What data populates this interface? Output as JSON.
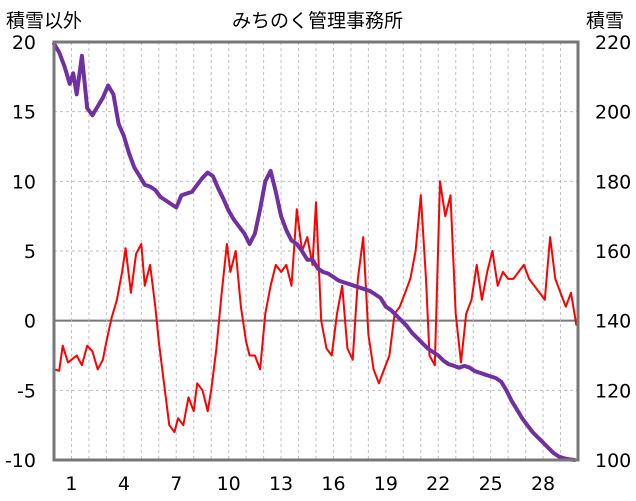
{
  "chart_data": {
    "type": "line",
    "title": "みちのく管理事務所",
    "left_axis_label": "積雪以外",
    "right_axis_label": "積雪",
    "y_left_range": [
      -10,
      20
    ],
    "y_right_range": [
      100,
      220
    ],
    "y_left_ticks": [
      "20",
      "15",
      "10",
      "5",
      "0",
      "-5",
      "-10"
    ],
    "y_right_ticks": [
      "220",
      "200",
      "180",
      "160",
      "140",
      "120",
      "100"
    ],
    "x_range": [
      0,
      30
    ],
    "x_ticks": [
      "1",
      "4",
      "7",
      "10",
      "13",
      "16",
      "19",
      "22",
      "25",
      "28"
    ],
    "x_tick_values": [
      1,
      4,
      7,
      10,
      13,
      16,
      19,
      22,
      25,
      28
    ],
    "grid": true,
    "zero_line": true,
    "series": [
      {
        "axis": "left",
        "color": "#ff0000",
        "x": [
          0,
          0.3,
          0.5,
          0.8,
          1.0,
          1.3,
          1.6,
          1.9,
          2.2,
          2.5,
          2.8,
          3.0,
          3.3,
          3.6,
          3.9,
          4.1,
          4.4,
          4.7,
          5.0,
          5.2,
          5.5,
          5.8,
          6.0,
          6.3,
          6.6,
          6.9,
          7.1,
          7.4,
          7.7,
          8.0,
          8.2,
          8.5,
          8.8,
          9.0,
          9.3,
          9.6,
          9.9,
          10.1,
          10.4,
          10.7,
          11.0,
          11.2,
          11.5,
          11.8,
          12.1,
          12.4,
          12.7,
          13.0,
          13.3,
          13.6,
          13.9,
          14.2,
          14.5,
          14.8,
          15.0,
          15.3,
          15.6,
          15.9,
          16.2,
          16.5,
          16.8,
          17.1,
          17.4,
          17.7,
          18.0,
          18.3,
          18.6,
          18.9,
          19.2,
          19.5,
          19.8,
          20.1,
          20.4,
          20.7,
          21.0,
          21.3,
          21.5,
          21.8,
          22.1,
          22.4,
          22.7,
          23.0,
          23.3,
          23.6,
          23.9,
          24.2,
          24.5,
          24.8,
          25.1,
          25.4,
          25.7,
          26.0,
          26.3,
          26.6,
          26.9,
          27.2,
          27.5,
          27.8,
          28.1,
          28.4,
          28.7,
          29.0,
          29.3,
          29.6,
          29.9
        ],
        "y": [
          -3.5,
          -3.6,
          -1.8,
          -3.0,
          -2.8,
          -2.5,
          -3.2,
          -1.8,
          -2.2,
          -3.5,
          -2.8,
          -1.5,
          0.2,
          1.5,
          3.5,
          5.2,
          2.0,
          4.8,
          5.5,
          2.5,
          4.0,
          1.0,
          -1.5,
          -4.5,
          -7.5,
          -8.0,
          -7.0,
          -7.5,
          -5.5,
          -6.5,
          -4.5,
          -5.0,
          -6.5,
          -5.0,
          -2.0,
          2.0,
          5.5,
          3.5,
          5.0,
          1.0,
          -1.5,
          -2.5,
          -2.5,
          -3.5,
          0.5,
          2.5,
          4.0,
          3.5,
          4.0,
          2.5,
          8.0,
          5.0,
          6.0,
          4.0,
          8.5,
          0.0,
          -2.0,
          -2.5,
          0.5,
          2.5,
          -2.0,
          -2.8,
          3.0,
          6.0,
          -1.0,
          -3.5,
          -4.5,
          -3.5,
          -2.5,
          0.5,
          1.0,
          2.0,
          3.0,
          5.0,
          9.0,
          3.0,
          -2.5,
          -3.2,
          10.0,
          7.5,
          9.0,
          0.5,
          -3.0,
          0.5,
          1.5,
          4.0,
          1.5,
          3.5,
          5.0,
          2.5,
          3.5,
          3.0,
          3.0,
          3.5,
          4.0,
          3.0,
          2.5,
          2.0,
          1.5,
          6.0,
          3.0,
          2.0,
          1.0,
          2.0,
          -0.3
        ]
      },
      {
        "axis": "right",
        "color": "#7030a0",
        "x": [
          0,
          0.3,
          0.6,
          0.9,
          1.1,
          1.3,
          1.6,
          1.9,
          2.2,
          2.5,
          2.8,
          3.1,
          3.4,
          3.7,
          4.0,
          4.3,
          4.6,
          4.9,
          5.2,
          5.5,
          5.8,
          6.1,
          6.4,
          6.7,
          7.0,
          7.3,
          7.6,
          7.9,
          8.2,
          8.5,
          8.8,
          9.1,
          9.4,
          9.7,
          10.0,
          10.3,
          10.6,
          10.9,
          11.2,
          11.5,
          11.8,
          12.1,
          12.4,
          12.7,
          13.0,
          13.3,
          13.6,
          13.9,
          14.2,
          14.5,
          14.8,
          15.1,
          15.4,
          15.7,
          16.0,
          16.3,
          16.6,
          16.9,
          17.2,
          17.5,
          17.8,
          18.1,
          18.4,
          18.7,
          19.0,
          19.3,
          19.6,
          19.9,
          20.2,
          20.5,
          20.8,
          21.1,
          21.4,
          21.7,
          22.0,
          22.3,
          22.6,
          22.9,
          23.2,
          23.5,
          23.8,
          24.1,
          24.4,
          24.7,
          25.0,
          25.3,
          25.6,
          25.9,
          26.2,
          26.5,
          26.8,
          27.1,
          27.4,
          27.7,
          28.0,
          28.3,
          28.6,
          28.9,
          29.2,
          29.5,
          29.8
        ],
        "y": [
          219.5,
          217.0,
          213.0,
          208.0,
          211.0,
          205.0,
          216.0,
          201.0,
          199.0,
          201.5,
          204.0,
          207.5,
          205.0,
          196.5,
          193.0,
          188.0,
          184.0,
          181.5,
          179.0,
          178.5,
          177.5,
          175.5,
          174.5,
          173.5,
          172.5,
          176.0,
          176.5,
          177.0,
          179.0,
          181.0,
          182.5,
          181.5,
          178.0,
          175.0,
          171.5,
          169.0,
          167.0,
          165.0,
          162.0,
          165.0,
          172.0,
          180.0,
          183.0,
          177.0,
          170.0,
          166.0,
          163.0,
          162.0,
          160.0,
          157.5,
          157.5,
          155.0,
          154.0,
          153.5,
          152.5,
          151.5,
          151.0,
          150.5,
          150.0,
          149.5,
          149.0,
          148.5,
          147.5,
          146.5,
          144.0,
          143.0,
          141.5,
          140.0,
          138.5,
          136.5,
          135.0,
          133.5,
          132.0,
          131.0,
          130.0,
          128.5,
          127.5,
          127.0,
          126.5,
          127.0,
          126.5,
          125.5,
          125.0,
          124.5,
          124.0,
          123.5,
          122.5,
          120.0,
          117.0,
          114.5,
          112.0,
          110.0,
          108.0,
          106.5,
          105.0,
          103.5,
          102.0,
          101.0,
          100.5,
          100.2,
          100.0
        ]
      }
    ]
  }
}
